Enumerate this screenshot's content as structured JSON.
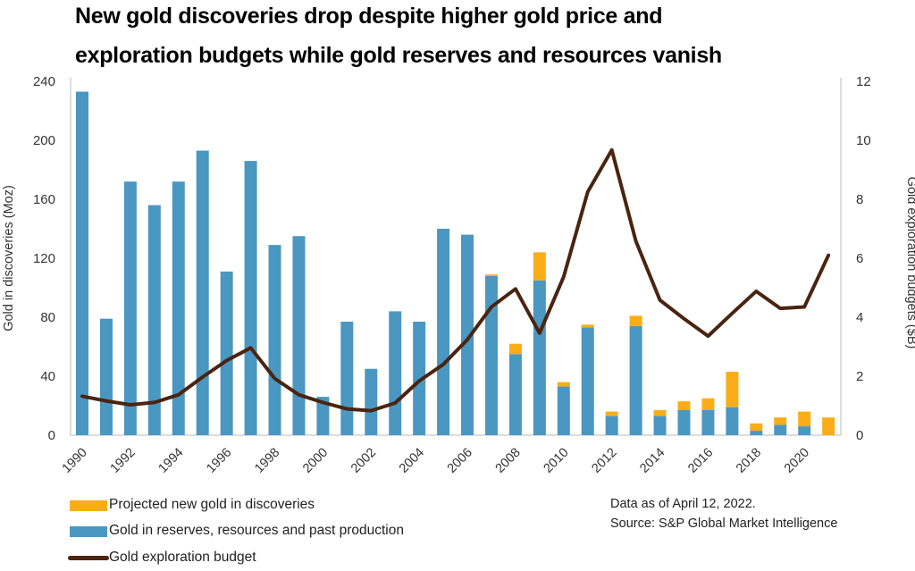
{
  "chart_data": {
    "type": "bar",
    "title_lines": [
      "New gold discoveries drop despite higher gold price and",
      "exploration budgets while gold reserves and resources vanish"
    ],
    "ylabel": "Gold in discoveries (Moz)",
    "y2label": "Gold exploration budgets ($B)",
    "ylim": [
      0,
      240
    ],
    "y2lim": [
      0,
      12
    ],
    "yticks": [
      0,
      40,
      80,
      120,
      160,
      200,
      240
    ],
    "y2ticks": [
      0,
      2,
      4,
      6,
      8,
      10,
      12
    ],
    "xtick_labels": [
      "1990",
      "1992",
      "1994",
      "1996",
      "1998",
      "2000",
      "2002",
      "2004",
      "2006",
      "2008",
      "2010",
      "2012",
      "2014",
      "2016",
      "2018",
      "2020"
    ],
    "categories": [
      1990,
      1991,
      1992,
      1993,
      1994,
      1995,
      1996,
      1997,
      1998,
      1999,
      2000,
      2001,
      2002,
      2003,
      2004,
      2005,
      2006,
      2007,
      2008,
      2009,
      2010,
      2011,
      2012,
      2013,
      2014,
      2015,
      2016,
      2017,
      2018,
      2019,
      2020,
      2021
    ],
    "stacked": true,
    "grid": false,
    "legend_placement": "bottom-left",
    "series": [
      {
        "name": "Gold in reserves, resources and past production",
        "kind": "bar",
        "axis": "left",
        "color": "#4a97c2",
        "values": [
          233,
          79,
          172,
          156,
          172,
          193,
          111,
          186,
          129,
          135,
          26,
          77,
          45,
          84,
          77,
          140,
          136,
          108,
          55,
          105,
          33,
          73,
          13,
          74,
          13,
          17,
          17,
          19,
          3,
          7,
          6,
          0
        ]
      },
      {
        "name": "Projected new gold in discoveries",
        "kind": "bar",
        "axis": "left",
        "color": "#fbad18",
        "values": [
          0,
          0,
          0,
          0,
          0,
          0,
          0,
          0,
          0,
          0,
          0,
          0,
          0,
          0,
          0,
          0,
          0,
          1,
          7,
          19,
          3,
          2,
          3,
          7,
          4,
          6,
          8,
          24,
          5,
          5,
          10,
          12
        ]
      },
      {
        "name": "Gold exploration budget",
        "kind": "line",
        "axis": "right",
        "color": "#4a2410",
        "values": [
          1.32,
          1.16,
          1.03,
          1.11,
          1.37,
          1.97,
          2.53,
          2.96,
          1.92,
          1.37,
          1.11,
          0.89,
          0.83,
          1.09,
          1.84,
          2.4,
          3.24,
          4.35,
          4.96,
          3.46,
          5.37,
          8.25,
          9.67,
          6.58,
          4.58,
          3.95,
          3.36,
          4.13,
          4.88,
          4.3,
          4.35,
          6.1
        ]
      }
    ]
  },
  "legend": {
    "items": [
      {
        "label": "Projected new gold in discoveries",
        "color": "#fbad18"
      },
      {
        "label": "Gold in reserves, resources and past production",
        "color": "#4a97c2"
      },
      {
        "label": "Gold exploration budget",
        "color": "#4a2410"
      }
    ]
  },
  "notes": {
    "date": "Data as of April 12, 2022.",
    "source": "Source: S&P Global Market Intelligence"
  }
}
